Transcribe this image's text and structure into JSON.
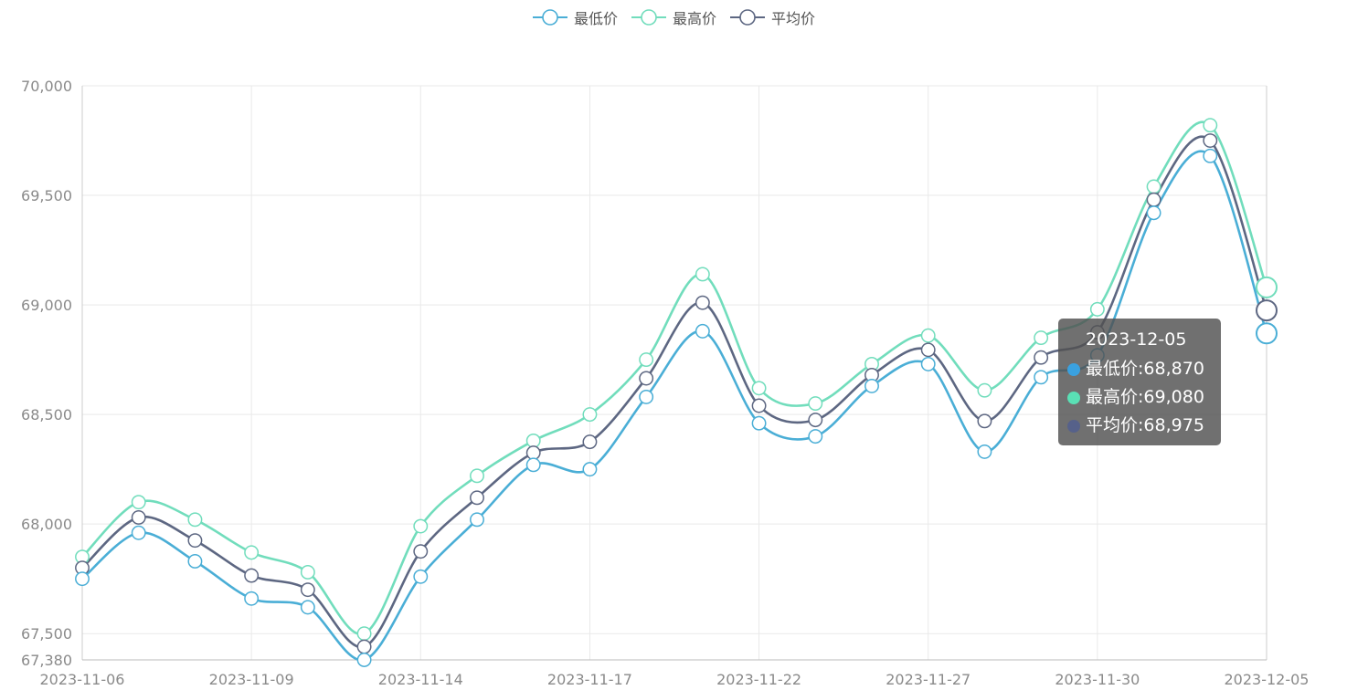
{
  "legend": [
    {
      "label": "最低价",
      "color": "#4aaed6"
    },
    {
      "label": "最高价",
      "color": "#71ddbc"
    },
    {
      "label": "平均价",
      "color": "#5d6782"
    }
  ],
  "tooltip": {
    "date": "2023-12-05",
    "rows": [
      {
        "name": "最低价",
        "text": "68,870",
        "color": "#3aa1e0"
      },
      {
        "name": "最高价",
        "text": "69,080",
        "color": "#5ae0b5"
      },
      {
        "name": "平均价",
        "text": "68,975",
        "color": "#56618a"
      }
    ]
  },
  "chart_data": {
    "type": "line",
    "smooth": true,
    "title": "",
    "xlabel": "",
    "ylabel": "",
    "ylim": [
      67380,
      70000
    ],
    "yticks": [
      67380,
      67500,
      68000,
      68500,
      69000,
      69500,
      70000
    ],
    "ytick_labels": [
      "67,380",
      "67,500",
      "68,000",
      "68,500",
      "69,000",
      "69,500",
      "70,000"
    ],
    "grid": true,
    "legend_position": "top-center",
    "x": [
      "2023-11-06",
      "2023-11-07",
      "2023-11-08",
      "2023-11-09",
      "2023-11-10",
      "2023-11-13",
      "2023-11-14",
      "2023-11-15",
      "2023-11-16",
      "2023-11-17",
      "2023-11-20",
      "2023-11-21",
      "2023-11-22",
      "2023-11-23",
      "2023-11-24",
      "2023-11-27",
      "2023-11-28",
      "2023-11-29",
      "2023-11-30",
      "2023-12-01",
      "2023-12-04",
      "2023-12-05"
    ],
    "x_tick_labels": [
      "2023-11-06",
      "2023-11-09",
      "2023-11-14",
      "2023-11-17",
      "2023-11-22",
      "2023-11-27",
      "2023-11-30",
      "2023-12-05"
    ],
    "x_tick_every": 3,
    "series": [
      {
        "name": "最低价",
        "color": "#4aaed6",
        "values": [
          67750,
          67960,
          67830,
          67660,
          67620,
          67380,
          67760,
          68020,
          68270,
          68250,
          68580,
          68880,
          68460,
          68400,
          68630,
          68730,
          68330,
          68670,
          68770,
          69420,
          69680,
          68870
        ]
      },
      {
        "name": "最高价",
        "color": "#71ddbc",
        "values": [
          67850,
          68100,
          68020,
          67870,
          67780,
          67500,
          67990,
          68220,
          68380,
          68500,
          68750,
          69140,
          68620,
          68550,
          68730,
          68860,
          68610,
          68850,
          68980,
          69540,
          69820,
          69080
        ]
      },
      {
        "name": "平均价",
        "color": "#5d6782",
        "values": [
          67800,
          68030,
          67925,
          67765,
          67700,
          67440,
          67875,
          68120,
          68325,
          68375,
          68665,
          69010,
          68540,
          68475,
          68680,
          68795,
          68470,
          68760,
          68875,
          69480,
          69750,
          68975
        ]
      }
    ]
  }
}
